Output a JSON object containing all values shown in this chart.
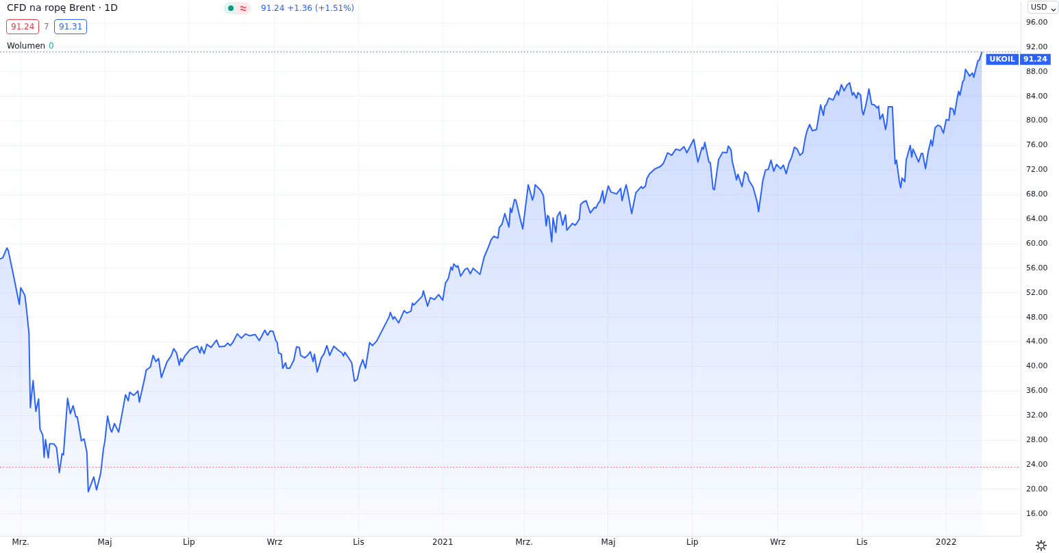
{
  "chart_data": {
    "type": "area",
    "title": "CFD na ropę Brent · 1D",
    "subtitle": "91.24 +1.36 (+1.51%)",
    "annotations": [
      "91.24",
      "7",
      "91.31",
      "Wolumen",
      "0",
      "USD"
    ],
    "grid": true,
    "legend": "right",
    "marker": "none",
    "line_style": "solid",
    "ref_lines": [
      {
        "axis": "y",
        "value": 91.24,
        "label": "91.24",
        "color": "#2962ff",
        "line_style": "dotted"
      },
      {
        "axis": "y",
        "value": 23.6,
        "color": "#f7525f",
        "line_style": "dotted"
      }
    ],
    "xlim": [
      "2020-02-15",
      "2022-02-24"
    ],
    "xticks": [
      {
        "value": "2020-03-01",
        "label": "Mrz."
      },
      {
        "value": "2020-05-01",
        "label": "Maj"
      },
      {
        "value": "2020-07-01",
        "label": "Lip"
      },
      {
        "value": "2020-09-01",
        "label": "Wrz"
      },
      {
        "value": "2020-11-01",
        "label": "Lis"
      },
      {
        "value": "2021-01-01",
        "label": "2021"
      },
      {
        "value": "2021-03-01",
        "label": "Mrz."
      },
      {
        "value": "2021-05-01",
        "label": "Maj"
      },
      {
        "value": "2021-07-01",
        "label": "Lip"
      },
      {
        "value": "2021-09-01",
        "label": "Wrz"
      },
      {
        "value": "2021-11-01",
        "label": "Lis"
      },
      {
        "value": "2022-01-01",
        "label": "2022"
      }
    ],
    "ylim": [
      12.4,
      99.4
    ],
    "yticks": [
      {
        "value": 16,
        "label": "16.00"
      },
      {
        "value": 20,
        "label": "20.00"
      },
      {
        "value": 24,
        "label": "24.00"
      },
      {
        "value": 28,
        "label": "28.00"
      },
      {
        "value": 32,
        "label": "32.00"
      },
      {
        "value": 36,
        "label": "36.00"
      },
      {
        "value": 40,
        "label": "40.00"
      },
      {
        "value": 44,
        "label": "44.00"
      },
      {
        "value": 48,
        "label": "48.00"
      },
      {
        "value": 52,
        "label": "52.00"
      },
      {
        "value": 56,
        "label": "56.00"
      },
      {
        "value": 60,
        "label": "60.00"
      },
      {
        "value": 64,
        "label": "64.00"
      },
      {
        "value": 68,
        "label": "68.00"
      },
      {
        "value": 72,
        "label": "72.00"
      },
      {
        "value": 76,
        "label": "76.00"
      },
      {
        "value": 80,
        "label": "80.00"
      },
      {
        "value": 84,
        "label": "84.00"
      },
      {
        "value": 88,
        "label": "88.00"
      },
      {
        "value": 92,
        "label": "92.00"
      },
      {
        "value": 96,
        "label": "96.00"
      }
    ],
    "x": [
      "2020-02-15",
      "2020-02-17",
      "2020-02-20",
      "2020-02-21",
      "2020-02-25",
      "2020-02-29",
      "2020-03-01",
      "2020-03-04",
      "2020-03-05",
      "2020-03-07",
      "2020-03-08",
      "2020-03-10",
      "2020-03-12",
      "2020-03-14",
      "2020-03-15",
      "2020-03-17",
      "2020-03-18",
      "2020-03-19",
      "2020-03-21",
      "2020-03-22",
      "2020-03-25",
      "2020-03-27",
      "2020-03-29",
      "2020-03-31",
      "2020-04-01",
      "2020-04-04",
      "2020-04-06",
      "2020-04-08",
      "2020-04-10",
      "2020-04-11",
      "2020-04-14",
      "2020-04-16",
      "2020-04-18",
      "2020-04-19",
      "2020-04-23",
      "2020-04-25",
      "2020-04-28",
      "2020-04-30",
      "2020-05-01",
      "2020-05-03",
      "2020-05-05",
      "2020-05-06",
      "2020-05-08",
      "2020-05-11",
      "2020-05-14",
      "2020-05-16",
      "2020-05-18",
      "2020-05-19",
      "2020-05-22",
      "2020-05-25",
      "2020-05-26",
      "2020-05-30",
      "2020-05-31",
      "2020-06-03",
      "2020-06-05",
      "2020-06-07",
      "2020-06-09",
      "2020-06-11",
      "2020-06-15",
      "2020-06-18",
      "2020-06-20",
      "2020-06-22",
      "2020-06-24",
      "2020-06-25",
      "2020-06-26",
      "2020-06-28",
      "2020-07-02",
      "2020-07-05",
      "2020-07-07",
      "2020-07-09",
      "2020-07-10",
      "2020-07-12",
      "2020-07-14",
      "2020-07-17",
      "2020-07-21",
      "2020-07-23",
      "2020-07-27",
      "2020-07-29",
      "2020-07-31",
      "2020-08-02",
      "2020-08-05",
      "2020-08-08",
      "2020-08-11",
      "2020-08-14",
      "2020-08-18",
      "2020-08-21",
      "2020-08-25",
      "2020-08-27",
      "2020-08-29",
      "2020-08-31",
      "2020-09-02",
      "2020-09-03",
      "2020-09-04",
      "2020-09-06",
      "2020-09-07",
      "2020-09-09",
      "2020-09-10",
      "2020-09-12",
      "2020-09-15",
      "2020-09-17",
      "2020-09-19",
      "2020-09-20",
      "2020-09-23",
      "2020-09-25",
      "2020-09-27",
      "2020-09-29",
      "2020-09-30",
      "2020-10-02",
      "2020-10-05",
      "2020-10-07",
      "2020-10-09",
      "2020-10-11",
      "2020-10-14",
      "2020-10-17",
      "2020-10-20",
      "2020-10-21",
      "2020-10-22",
      "2020-10-25",
      "2020-10-27",
      "2020-10-29",
      "2020-10-31",
      "2020-11-02",
      "2020-11-04",
      "2020-11-06",
      "2020-11-09",
      "2020-11-11",
      "2020-11-14",
      "2020-11-23",
      "2020-11-24",
      "2020-11-26",
      "2020-11-27",
      "2020-11-30",
      "2020-12-04",
      "2020-12-06",
      "2020-12-09",
      "2020-12-10",
      "2020-12-11",
      "2020-12-17",
      "2020-12-18",
      "2020-12-21",
      "2020-12-23",
      "2020-12-26",
      "2020-12-29",
      "2021-01-01",
      "2021-01-03",
      "2021-01-05",
      "2021-01-07",
      "2021-01-08",
      "2021-01-09",
      "2021-01-11",
      "2021-01-12",
      "2021-01-14",
      "2021-01-17",
      "2021-01-19",
      "2021-01-21",
      "2021-01-23",
      "2021-01-28",
      "2021-01-31",
      "2021-02-03",
      "2021-02-05",
      "2021-02-07",
      "2021-02-10",
      "2021-02-11",
      "2021-02-13",
      "2021-02-15",
      "2021-02-18",
      "2021-02-19",
      "2021-02-20",
      "2021-02-22",
      "2021-02-23",
      "2021-02-26",
      "2021-02-28",
      "2021-03-04",
      "2021-03-06",
      "2021-03-07",
      "2021-03-08",
      "2021-03-09",
      "2021-03-13",
      "2021-03-15",
      "2021-03-17",
      "2021-03-18",
      "2021-03-19",
      "2021-03-21",
      "2021-03-22",
      "2021-03-24",
      "2021-03-25",
      "2021-03-27",
      "2021-03-29",
      "2021-03-31",
      "2021-04-01",
      "2021-04-05",
      "2021-04-07",
      "2021-04-08",
      "2021-04-10",
      "2021-04-11",
      "2021-04-13",
      "2021-04-15",
      "2021-04-16",
      "2021-04-18",
      "2021-04-21",
      "2021-04-22",
      "2021-04-24",
      "2021-04-25",
      "2021-04-27",
      "2021-04-28",
      "2021-05-01",
      "2021-05-03",
      "2021-05-07",
      "2021-05-10",
      "2021-05-11",
      "2021-05-13",
      "2021-05-14",
      "2021-05-15",
      "2021-05-18",
      "2021-05-21",
      "2021-05-23",
      "2021-05-25",
      "2021-05-26",
      "2021-05-28",
      "2021-05-29",
      "2021-05-31",
      "2021-06-04",
      "2021-06-08",
      "2021-06-10",
      "2021-06-13",
      "2021-06-16",
      "2021-06-19",
      "2021-06-22",
      "2021-06-25",
      "2021-06-27",
      "2021-06-29",
      "2021-07-02",
      "2021-07-05",
      "2021-07-08",
      "2021-07-09",
      "2021-07-10",
      "2021-07-12",
      "2021-07-13",
      "2021-07-14",
      "2021-07-16",
      "2021-07-17",
      "2021-07-20",
      "2021-07-23",
      "2021-07-26",
      "2021-07-27",
      "2021-07-29",
      "2021-07-30",
      "2021-07-31",
      "2021-08-02",
      "2021-08-03",
      "2021-08-06",
      "2021-08-08",
      "2021-08-10",
      "2021-08-11",
      "2021-08-14",
      "2021-08-16",
      "2021-08-17",
      "2021-08-18",
      "2021-08-21",
      "2021-08-23",
      "2021-08-25",
      "2021-08-27",
      "2021-08-29",
      "2021-08-31",
      "2021-09-03",
      "2021-09-05",
      "2021-09-07",
      "2021-09-09",
      "2021-09-11",
      "2021-09-13",
      "2021-09-15",
      "2021-09-17",
      "2021-09-19",
      "2021-09-21",
      "2021-09-22",
      "2021-09-24",
      "2021-09-26",
      "2021-09-29",
      "2021-10-01",
      "2021-10-02",
      "2021-10-04",
      "2021-10-05",
      "2021-10-06",
      "2021-10-08",
      "2021-10-11",
      "2021-10-14",
      "2021-10-15",
      "2021-10-17",
      "2021-10-19",
      "2021-10-21",
      "2021-10-23",
      "2021-10-25",
      "2021-10-26",
      "2021-10-28",
      "2021-10-29",
      "2021-10-31",
      "2021-11-01",
      "2021-11-02",
      "2021-11-04",
      "2021-11-06",
      "2021-11-08",
      "2021-11-10",
      "2021-11-12",
      "2021-11-13",
      "2021-11-14",
      "2021-11-16",
      "2021-11-18",
      "2021-11-19",
      "2021-11-20",
      "2021-11-23",
      "2021-11-25",
      "2021-11-26",
      "2021-11-28",
      "2021-11-29",
      "2021-11-30",
      "2021-12-02",
      "2021-12-03",
      "2021-12-06",
      "2021-12-07",
      "2021-12-08",
      "2021-12-12",
      "2021-12-14",
      "2021-12-15",
      "2021-12-17",
      "2021-12-19",
      "2021-12-21",
      "2021-12-22",
      "2021-12-24",
      "2021-12-26",
      "2021-12-28",
      "2021-12-30",
      "2022-01-01",
      "2022-01-03",
      "2022-01-04",
      "2022-01-06",
      "2022-01-07",
      "2022-01-09",
      "2022-01-10",
      "2022-01-11",
      "2022-01-13",
      "2022-01-14",
      "2022-01-15",
      "2022-01-17",
      "2022-01-18",
      "2022-01-20",
      "2022-01-21",
      "2022-01-22",
      "2022-01-24",
      "2022-01-25",
      "2022-01-27"
    ],
    "series": [
      {
        "name": "UKOIL",
        "color": "#2962ff",
        "values": [
          57.5,
          57.7,
          59.3,
          58.9,
          54.6,
          50.1,
          52.8,
          51.6,
          49.8,
          45.4,
          33.3,
          37.7,
          32.7,
          34.7,
          29.8,
          28.8,
          25.2,
          28.1,
          25.1,
          27.4,
          27.4,
          26.8,
          22.7,
          25.8,
          25.6,
          34.8,
          32.3,
          33.6,
          31.8,
          31.8,
          27.9,
          28.2,
          26.0,
          19.6,
          22.0,
          19.9,
          22.6,
          26.6,
          27.8,
          31.9,
          29.8,
          29.3,
          30.7,
          29.3,
          32.9,
          35.4,
          34.4,
          35.8,
          35.3,
          36.0,
          34.2,
          38.2,
          39.4,
          39.9,
          41.8,
          40.8,
          41.3,
          38.2,
          40.7,
          41.7,
          42.9,
          42.2,
          40.2,
          41.3,
          40.8,
          41.7,
          42.8,
          43.1,
          43.3,
          42.2,
          43.2,
          42.1,
          43.6,
          43.1,
          44.3,
          43.2,
          43.3,
          43.8,
          43.4,
          44.0,
          45.3,
          44.6,
          45.3,
          45.0,
          45.2,
          44.2,
          45.9,
          45.1,
          45.8,
          45.7,
          44.2,
          43.9,
          42.2,
          42.0,
          39.7,
          40.6,
          39.7,
          39.7,
          41.0,
          43.2,
          43.1,
          41.8,
          41.4,
          41.8,
          42.4,
          40.8,
          42.0,
          39.1,
          41.4,
          42.1,
          43.4,
          41.8,
          43.3,
          42.7,
          42.2,
          41.7,
          42.3,
          41.3,
          40.6,
          37.6,
          37.9,
          39.9,
          41.1,
          39.7,
          43.9,
          43.4,
          44.1,
          48.0,
          48.8,
          47.7,
          48.1,
          47.1,
          49.1,
          48.7,
          49.0,
          50.3,
          50.0,
          51.4,
          52.3,
          49.8,
          51.2,
          50.9,
          51.7,
          50.8,
          53.6,
          54.3,
          56.2,
          55.7,
          56.7,
          56.2,
          56.4,
          54.7,
          55.8,
          56.0,
          55.1,
          56.0,
          55.0,
          57.8,
          59.4,
          60.6,
          61.2,
          60.9,
          62.6,
          63.2,
          64.9,
          62.7,
          65.8,
          65.1,
          67.2,
          67.1,
          64.2,
          62.4,
          69.6,
          68.0,
          67.1,
          67.8,
          69.6,
          68.7,
          67.8,
          62.9,
          64.6,
          64.3,
          60.3,
          64.2,
          61.8,
          64.4,
          65.2,
          63.0,
          64.7,
          62.2,
          63.3,
          63.0,
          63.3,
          64.0,
          66.4,
          66.8,
          67.0,
          66.3,
          65.0,
          65.9,
          65.8,
          66.7,
          66.9,
          68.6,
          66.6,
          69.4,
          68.4,
          68.1,
          69.0,
          67.0,
          68.8,
          69.6,
          68.6,
          64.9,
          68.3,
          68.8,
          69.3,
          69.0,
          69.4,
          70.6,
          71.4,
          72.2,
          72.6,
          73.1,
          74.8,
          74.4,
          75.4,
          75.2,
          75.8,
          74.8,
          75.7,
          77.0,
          73.3,
          75.7,
          75.4,
          76.5,
          74.4,
          73.3,
          73.2,
          68.9,
          68.8,
          73.7,
          74.9,
          74.8,
          75.9,
          75.3,
          73.3,
          72.4,
          70.4,
          71.3,
          69.3,
          71.7,
          71.3,
          70.3,
          69.2,
          67.6,
          66.7,
          65.2,
          70.2,
          72.0,
          72.1,
          73.6,
          71.8,
          72.9,
          72.2,
          72.8,
          71.4,
          73.1,
          74.1,
          75.7,
          75.4,
          74.4,
          74.8,
          77.4,
          78.3,
          79.4,
          78.4,
          78.6,
          81.3,
          82.6,
          80.9,
          82.4,
          82.6,
          83.7,
          83.4,
          84.9,
          84.2,
          85.9,
          84.9,
          85.8,
          86.2,
          84.2,
          84.6,
          83.7,
          84.6,
          84.2,
          81.7,
          81.0,
          82.8,
          85.2,
          82.7,
          82.6,
          82.1,
          82.4,
          80.3,
          81.1,
          78.6,
          79.7,
          82.3,
          82.3,
          73.0,
          73.6,
          70.2,
          69.1,
          70.7,
          70.1,
          73.6,
          76.0,
          74.1,
          75.4,
          73.3,
          74.7,
          74.7,
          72.2,
          75.0,
          76.9,
          75.9,
          78.9,
          79.3,
          79.1,
          78.0,
          80.2,
          80.1,
          82.1,
          81.9,
          81.0,
          83.7,
          84.8,
          84.2,
          86.4,
          86.7,
          88.4,
          87.7,
          87.3,
          87.8,
          87.1,
          88.0,
          89.8,
          89.9,
          91.24
        ]
      }
    ]
  }
}
